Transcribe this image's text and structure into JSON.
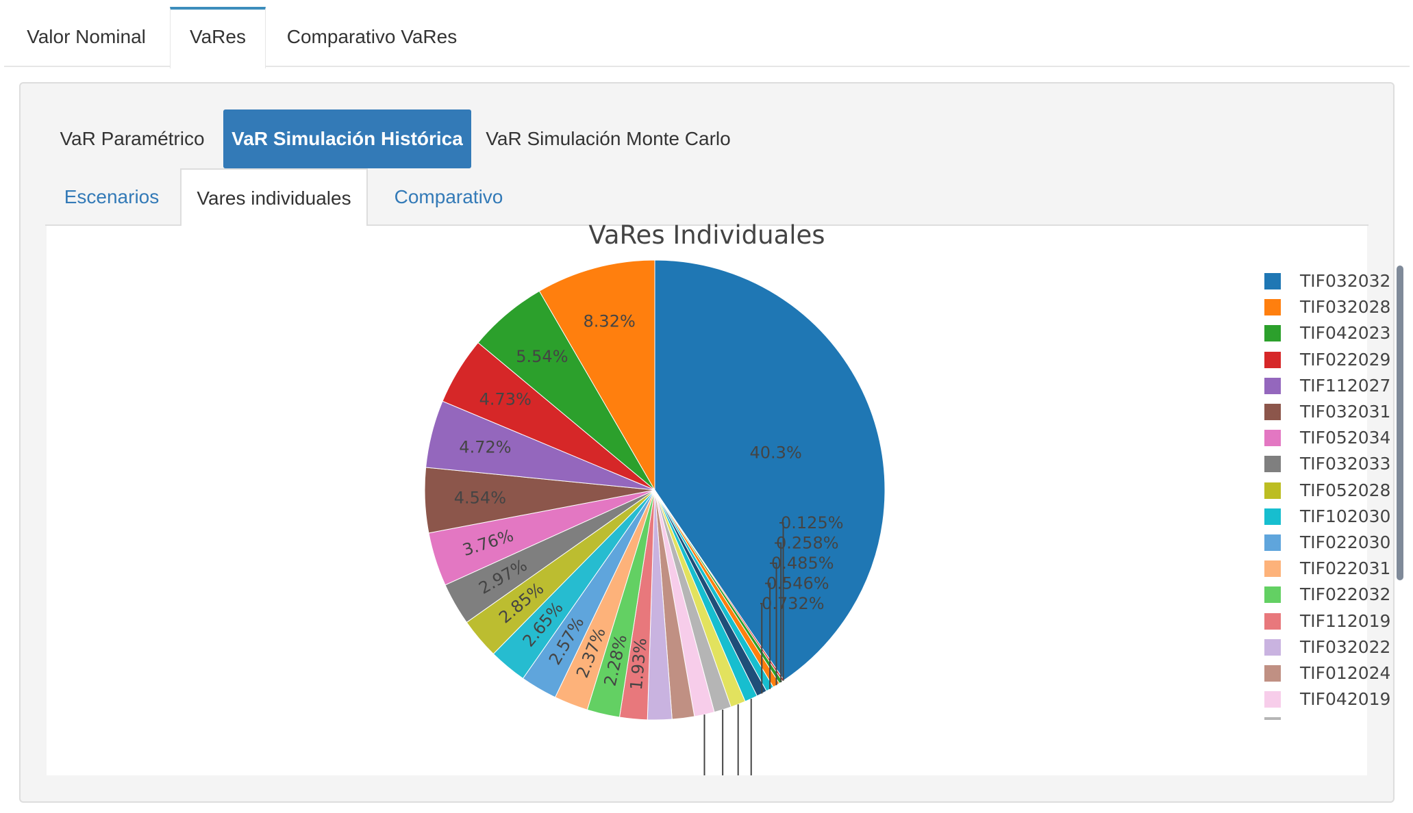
{
  "top_tabs": [
    "Valor Nominal",
    "VaRes",
    "Comparativo VaRes"
  ],
  "method_tabs": [
    "VaR Paramétrico",
    "VaR Simulación Histórica",
    "VaR Simulación Monte Carlo"
  ],
  "sub_tabs": [
    "Escenarios",
    "Vares individuales",
    "Comparativo"
  ],
  "chart_data": {
    "type": "pie",
    "title": "VaRes Individuales",
    "start_angle_deg": 90,
    "direction": "clockwise",
    "legend_position": "right",
    "slices": [
      {
        "label": "TIF032032",
        "value": 40.3,
        "text": "40.3%",
        "color": "#1f77b4"
      },
      {
        "label": "?",
        "value": 0.125,
        "text": "0.125%",
        "color": "#d62728"
      },
      {
        "label": "?",
        "value": 0.258,
        "text": "0.258%",
        "color": "#2ca02c"
      },
      {
        "label": "?",
        "value": 0.485,
        "text": "0.485%",
        "color": "#ff7f0e"
      },
      {
        "label": "?",
        "value": 0.546,
        "text": "0.546%",
        "color": "#17becf"
      },
      {
        "label": "?",
        "value": 0.732,
        "text": "0.732%",
        "color": "#1f4e79"
      },
      {
        "label": "?",
        "value": 0.9,
        "text": "",
        "color": "#17becf"
      },
      {
        "label": "?",
        "value": 1.05,
        "text": "",
        "color": "#e2e25e"
      },
      {
        "label": "?",
        "value": 1.2,
        "text": "",
        "color": "#b5b5b5"
      },
      {
        "label": "TIF042019",
        "value": 1.4,
        "text": "",
        "color": "#f7cdea"
      },
      {
        "label": "TIF012024",
        "value": 1.55,
        "text": "",
        "color": "#c09083"
      },
      {
        "label": "TIF032022",
        "value": 1.7,
        "text": "",
        "color": "#c9b3e0"
      },
      {
        "label": "TIF112019",
        "value": 1.93,
        "text": "1.93%",
        "color": "#e8787c"
      },
      {
        "label": "TIF022032",
        "value": 2.28,
        "text": "2.28%",
        "color": "#63d063"
      },
      {
        "label": "TIF022031",
        "value": 2.37,
        "text": "2.37%",
        "color": "#fdb27a"
      },
      {
        "label": "TIF022030",
        "value": 2.57,
        "text": "2.57%",
        "color": "#5fa5dc"
      },
      {
        "label": "TIF102030",
        "value": 2.65,
        "text": "2.65%",
        "color": "#26bcd0"
      },
      {
        "label": "TIF052028",
        "value": 2.85,
        "text": "2.85%",
        "color": "#bcbd30"
      },
      {
        "label": "TIF032033",
        "value": 2.97,
        "text": "2.97%",
        "color": "#7f7f7f"
      },
      {
        "label": "TIF052034",
        "value": 3.76,
        "text": "3.76%",
        "color": "#e377c2"
      },
      {
        "label": "TIF032031",
        "value": 4.54,
        "text": "4.54%",
        "color": "#8c564b"
      },
      {
        "label": "TIF112027",
        "value": 4.72,
        "text": "4.72%",
        "color": "#9467bd"
      },
      {
        "label": "TIF022029",
        "value": 4.73,
        "text": "4.73%",
        "color": "#d62728"
      },
      {
        "label": "TIF042023",
        "value": 5.54,
        "text": "5.54%",
        "color": "#2ca02c"
      },
      {
        "label": "TIF032028",
        "value": 8.32,
        "text": "8.32%",
        "color": "#ff7f0e"
      }
    ],
    "legend_entries": [
      {
        "label": "TIF032032",
        "color": "#1f77b4"
      },
      {
        "label": "TIF032028",
        "color": "#ff7f0e"
      },
      {
        "label": "TIF042023",
        "color": "#2ca02c"
      },
      {
        "label": "TIF022029",
        "color": "#d62728"
      },
      {
        "label": "TIF112027",
        "color": "#9467bd"
      },
      {
        "label": "TIF032031",
        "color": "#8c564b"
      },
      {
        "label": "TIF052034",
        "color": "#e377c2"
      },
      {
        "label": "TIF032033",
        "color": "#7f7f7f"
      },
      {
        "label": "TIF052028",
        "color": "#bcbd22"
      },
      {
        "label": "TIF102030",
        "color": "#17becf"
      },
      {
        "label": "TIF022030",
        "color": "#5fa5dc"
      },
      {
        "label": "TIF022031",
        "color": "#fdb27a"
      },
      {
        "label": "TIF022032",
        "color": "#63d063"
      },
      {
        "label": "TIF112019",
        "color": "#e8787c"
      },
      {
        "label": "TIF032022",
        "color": "#c9b3e0"
      },
      {
        "label": "TIF012024",
        "color": "#c09083"
      },
      {
        "label": "TIF042019",
        "color": "#f7cdea"
      },
      {
        "label": "",
        "color": "#b5b5b5"
      }
    ]
  },
  "colors": {
    "accent": "#3c8dbc",
    "active_pill": "#337ab7",
    "link": "#337ab7"
  }
}
